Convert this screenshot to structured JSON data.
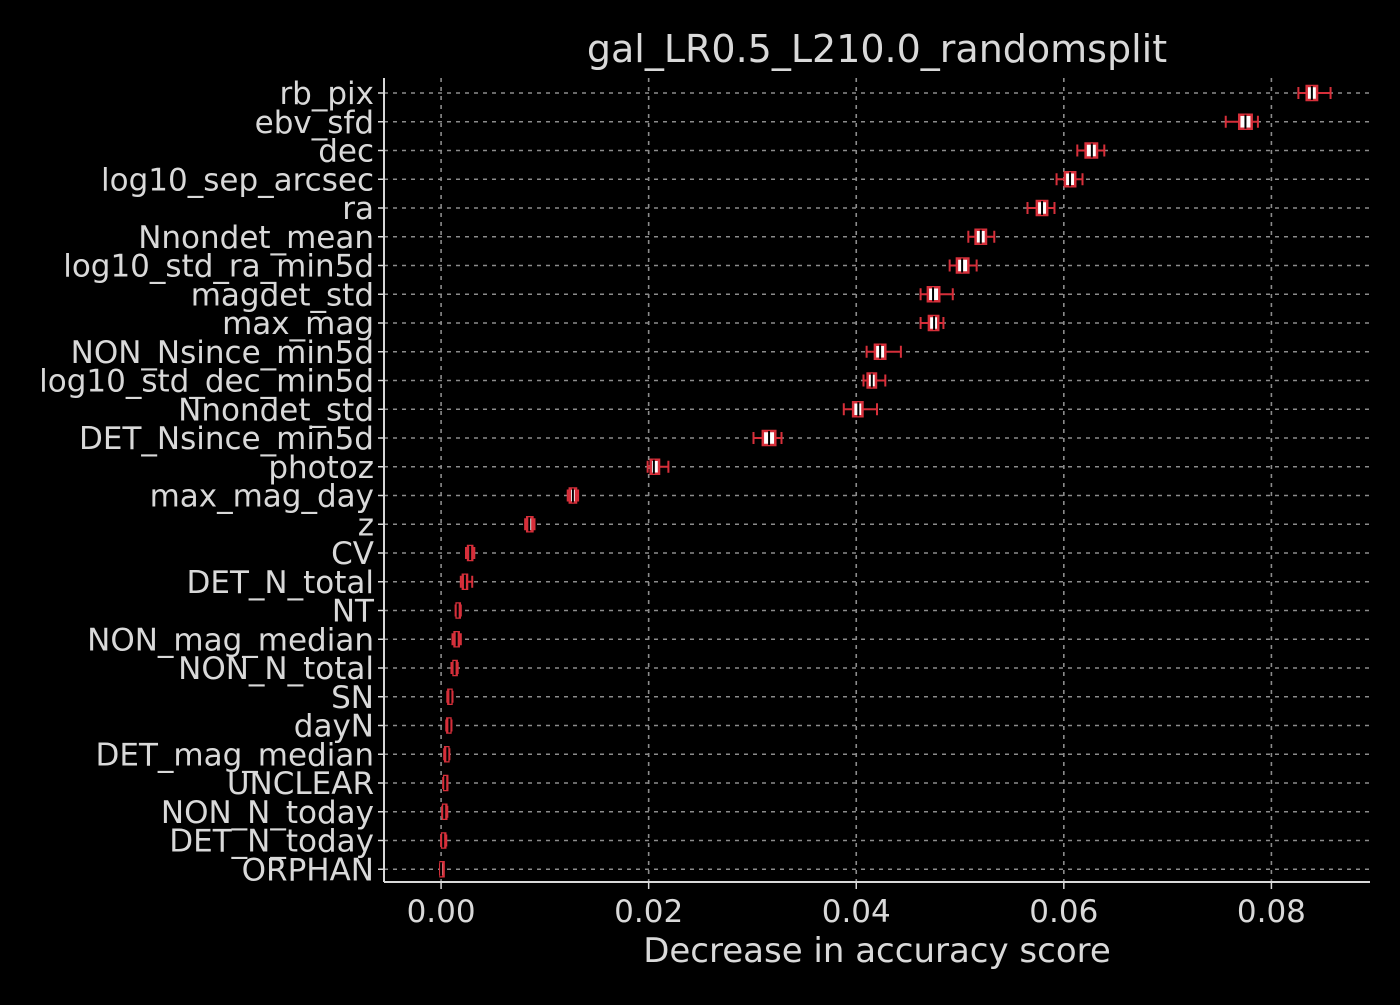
{
  "chart_data": {
    "type": "box",
    "orientation": "horizontal",
    "title": "gal_LR0.5_L210.0_randomsplit",
    "xlabel": "Decrease in accuracy score",
    "ylabel": "",
    "xlim": [
      -0.0055,
      0.0895
    ],
    "xticks": [
      "0.00",
      "0.02",
      "0.04",
      "0.06",
      "0.08"
    ],
    "xtick_values": [
      0.0,
      0.02,
      0.04,
      0.06,
      0.08
    ],
    "grid": true,
    "colors": {
      "background": "#000000",
      "axis": "#d9d9d9",
      "grid": "#8c8c8c",
      "box_edge": "#d62f3a",
      "box_face": "#ffffff",
      "median": "#000000",
      "text": "#d9d9d9"
    },
    "features": [
      {
        "name": "rb_pix",
        "whisker_low": 0.0826,
        "q1": 0.0834,
        "median": 0.0839,
        "q3": 0.0844,
        "whisker_high": 0.0857
      },
      {
        "name": "ebv_sfd",
        "whisker_low": 0.0756,
        "q1": 0.0769,
        "median": 0.0775,
        "q3": 0.0781,
        "whisker_high": 0.0787
      },
      {
        "name": "dec",
        "whisker_low": 0.0613,
        "q1": 0.0621,
        "median": 0.0627,
        "q3": 0.0632,
        "whisker_high": 0.0639
      },
      {
        "name": "log10_sep_arcsec",
        "whisker_low": 0.0593,
        "q1": 0.0601,
        "median": 0.0606,
        "q3": 0.0611,
        "whisker_high": 0.0618
      },
      {
        "name": "ra",
        "whisker_low": 0.0565,
        "q1": 0.0574,
        "median": 0.0579,
        "q3": 0.0584,
        "whisker_high": 0.0591
      },
      {
        "name": "Nnondet_mean",
        "whisker_low": 0.0508,
        "q1": 0.0515,
        "median": 0.052,
        "q3": 0.0525,
        "whisker_high": 0.0533
      },
      {
        "name": "log10_std_ra_min5d",
        "whisker_low": 0.049,
        "q1": 0.0497,
        "median": 0.0502,
        "q3": 0.0508,
        "whisker_high": 0.0516
      },
      {
        "name": "magdet_std",
        "whisker_low": 0.0462,
        "q1": 0.0469,
        "median": 0.0474,
        "q3": 0.048,
        "whisker_high": 0.0493
      },
      {
        "name": "max_mag",
        "whisker_low": 0.0462,
        "q1": 0.047,
        "median": 0.0475,
        "q3": 0.0479,
        "whisker_high": 0.0484
      },
      {
        "name": "NON_Nsince_min5d",
        "whisker_low": 0.041,
        "q1": 0.0418,
        "median": 0.0423,
        "q3": 0.0428,
        "whisker_high": 0.0443
      },
      {
        "name": "log10_std_dec_min5d",
        "whisker_low": 0.0407,
        "q1": 0.0411,
        "median": 0.0415,
        "q3": 0.0419,
        "whisker_high": 0.0428
      },
      {
        "name": "Nnondet_std",
        "whisker_low": 0.0388,
        "q1": 0.0397,
        "median": 0.0402,
        "q3": 0.0406,
        "whisker_high": 0.042
      },
      {
        "name": "DET_Nsince_min5d",
        "whisker_low": 0.0301,
        "q1": 0.031,
        "median": 0.0316,
        "q3": 0.0322,
        "whisker_high": 0.0328
      },
      {
        "name": "photoz",
        "whisker_low": 0.0199,
        "q1": 0.0202,
        "median": 0.0205,
        "q3": 0.021,
        "whisker_high": 0.0219
      },
      {
        "name": "max_mag_day",
        "whisker_low": 0.0122,
        "q1": 0.0124,
        "median": 0.0127,
        "q3": 0.013,
        "whisker_high": 0.0132
      },
      {
        "name": "z",
        "whisker_low": 0.0081,
        "q1": 0.0083,
        "median": 0.0085,
        "q3": 0.0088,
        "whisker_high": 0.009
      },
      {
        "name": "CV",
        "whisker_low": 0.0024,
        "q1": 0.0026,
        "median": 0.0028,
        "q3": 0.003,
        "whisker_high": 0.0032
      },
      {
        "name": "DET_N_total",
        "whisker_low": 0.0019,
        "q1": 0.0021,
        "median": 0.0023,
        "q3": 0.0025,
        "whisker_high": 0.003
      },
      {
        "name": "NT",
        "whisker_low": 0.0014,
        "q1": 0.0015,
        "median": 0.0016,
        "q3": 0.0018,
        "whisker_high": 0.0019
      },
      {
        "name": "NON_mag_median",
        "whisker_low": 0.0011,
        "q1": 0.0013,
        "median": 0.0015,
        "q3": 0.0017,
        "whisker_high": 0.0019
      },
      {
        "name": "NON_N_total",
        "whisker_low": 0.001,
        "q1": 0.0012,
        "median": 0.0013,
        "q3": 0.0015,
        "whisker_high": 0.0016
      },
      {
        "name": "SN",
        "whisker_low": 0.0006,
        "q1": 0.0007,
        "median": 0.0009,
        "q3": 0.001,
        "whisker_high": 0.0011
      },
      {
        "name": "dayN",
        "whisker_low": 0.0005,
        "q1": 0.0006,
        "median": 0.0008,
        "q3": 0.0009,
        "whisker_high": 0.001
      },
      {
        "name": "DET_mag_median",
        "whisker_low": 0.0003,
        "q1": 0.0004,
        "median": 0.0006,
        "q3": 0.0007,
        "whisker_high": 0.0008
      },
      {
        "name": "UNCLEAR",
        "whisker_low": 0.0002,
        "q1": 0.0003,
        "median": 0.0004,
        "q3": 0.0005,
        "whisker_high": 0.0006
      },
      {
        "name": "NON_N_today",
        "whisker_low": 0.0001,
        "q1": 0.0002,
        "median": 0.0003,
        "q3": 0.0005,
        "whisker_high": 0.0006
      },
      {
        "name": "DET_N_today",
        "whisker_low": 0.0,
        "q1": 0.0001,
        "median": 0.0002,
        "q3": 0.0004,
        "whisker_high": 0.0005
      },
      {
        "name": "ORPHAN",
        "whisker_low": -0.0001,
        "q1": -5e-05,
        "median": 0.0,
        "q3": 5e-05,
        "whisker_high": 0.0001
      }
    ]
  }
}
